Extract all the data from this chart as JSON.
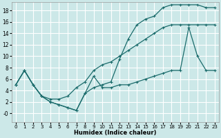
{
  "xlabel": "Humidex (Indice chaleur)",
  "bg_color": "#cce8e8",
  "line_color": "#1a6b6b",
  "grid_color": "#ffffff",
  "xlim": [
    -0.5,
    23.5
  ],
  "ylim": [
    -1.5,
    19.5
  ],
  "xticks": [
    0,
    1,
    2,
    3,
    4,
    5,
    6,
    7,
    8,
    9,
    10,
    11,
    12,
    13,
    14,
    15,
    16,
    17,
    18,
    19,
    20,
    21,
    22,
    23
  ],
  "yticks": [
    0,
    2,
    4,
    6,
    8,
    10,
    12,
    14,
    16,
    18
  ],
  "ytick_labels": [
    "-0",
    "2",
    "4",
    "6",
    "8",
    "10",
    "12",
    "14",
    "16",
    "18"
  ],
  "line1_x": [
    0,
    1,
    2,
    3,
    4,
    5,
    6,
    7,
    8,
    9,
    10,
    11,
    12,
    13,
    14,
    15,
    16,
    17,
    18,
    19,
    20,
    21,
    22,
    23
  ],
  "line1_y": [
    5,
    7.5,
    5,
    3,
    2.5,
    2.5,
    3.0,
    4.5,
    5.5,
    7.5,
    8.5,
    9.0,
    10,
    11,
    12,
    13,
    14,
    15,
    15.5,
    15.5,
    15.5,
    15.5,
    15.5,
    15.5
  ],
  "line2_x": [
    0,
    1,
    2,
    3,
    4,
    5,
    6,
    7,
    8,
    9,
    10,
    11,
    12,
    13,
    14,
    15,
    16,
    17,
    18,
    19,
    20,
    21,
    22,
    23
  ],
  "line2_y": [
    5,
    7.5,
    5,
    3,
    2,
    1.5,
    1.0,
    0.5,
    3.5,
    4.5,
    5.0,
    5.5,
    9.5,
    13,
    15.5,
    16.5,
    17,
    18.5,
    19,
    19,
    19,
    19,
    18.5,
    18.5
  ],
  "line3_x": [
    0,
    1,
    2,
    3,
    4,
    5,
    6,
    7,
    8,
    9,
    10,
    11,
    12,
    13,
    14,
    15,
    16,
    17,
    18,
    19,
    20,
    21,
    22,
    23
  ],
  "line3_y": [
    5,
    7.5,
    5,
    3,
    2,
    1.5,
    1.0,
    0.5,
    3.5,
    6.5,
    4.5,
    4.5,
    5,
    5,
    5.5,
    6,
    6.5,
    7,
    7.5,
    7.5,
    15,
    10.0,
    7.5,
    7.5
  ]
}
